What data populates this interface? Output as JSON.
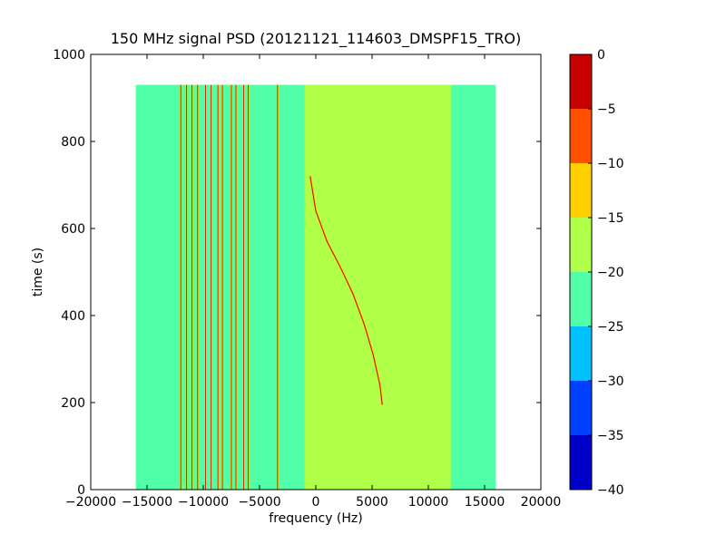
{
  "chart_data": {
    "type": "heatmap",
    "title": "150 MHz signal PSD (20121121_114603_DMSPF15_TRO)",
    "xlabel": "frequency (Hz)",
    "ylabel": "time (s)",
    "xlim": [
      -20000,
      20000
    ],
    "ylim": [
      0,
      1000
    ],
    "xticks": [
      -20000,
      -15000,
      -10000,
      -5000,
      0,
      5000,
      10000,
      15000,
      20000
    ],
    "yticks": [
      0,
      200,
      400,
      600,
      800,
      1000
    ],
    "xtick_labels": [
      "−20000",
      "−15000",
      "−10000",
      "−5000",
      "0",
      "5000",
      "10000",
      "15000",
      "20000"
    ],
    "ytick_labels": [
      "0",
      "200",
      "400",
      "600",
      "800",
      "1000"
    ],
    "data_extent": {
      "x": [
        -16000,
        16000
      ],
      "y": [
        0,
        930
      ]
    },
    "colorbar": {
      "levels": [
        -40,
        -35,
        -30,
        -25,
        -20,
        -15,
        -10,
        -5,
        0
      ],
      "tick_labels": [
        "−40",
        "−35",
        "−30",
        "−25",
        "−20",
        "−15",
        "−10",
        "−5",
        "0"
      ],
      "colors": [
        "#0000c8",
        "#0040ff",
        "#00c0ff",
        "#50ffa8",
        "#b0ff48",
        "#ffd000",
        "#ff5000",
        "#c80000"
      ]
    },
    "regions": [
      {
        "name": "background band",
        "x": [
          -16000,
          16000
        ],
        "level_range": [
          -25,
          -20
        ]
      },
      {
        "name": "central band",
        "x": [
          -1000,
          12000
        ],
        "level_range": [
          -20,
          -15
        ]
      }
    ],
    "vertical_lines_hz": [
      -12000,
      -11500,
      -11000,
      -10500,
      -9800,
      -9300,
      -8700,
      -8300,
      -7500,
      -7100,
      -6400,
      -6000,
      -3400
    ],
    "doppler_trace": {
      "description": "satellite signal trace",
      "points": [
        [
          -500,
          720
        ],
        [
          0,
          640
        ],
        [
          1000,
          570
        ],
        [
          2200,
          510
        ],
        [
          3300,
          450
        ],
        [
          4300,
          380
        ],
        [
          5100,
          310
        ],
        [
          5700,
          240
        ],
        [
          5900,
          195
        ]
      ]
    }
  }
}
